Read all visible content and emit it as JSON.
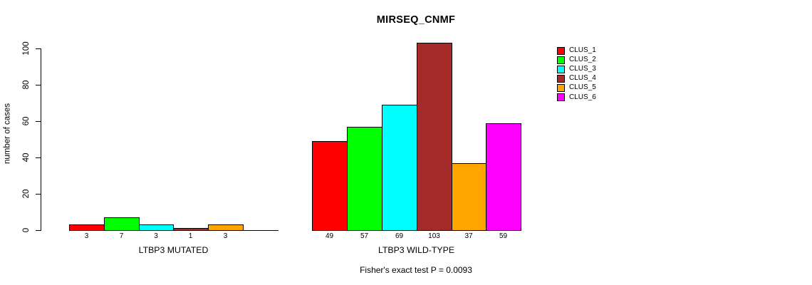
{
  "chart_data": {
    "type": "bar",
    "title": "MIRSEQ_CNMF",
    "ylabel": "number of cases",
    "ylim": [
      0,
      100
    ],
    "yticks": [
      0,
      20,
      40,
      60,
      80,
      100
    ],
    "grid": false,
    "legend_position": "right",
    "clusters": [
      {
        "name": "CLUS_1",
        "color": "#FF0000"
      },
      {
        "name": "CLUS_2",
        "color": "#00FF00"
      },
      {
        "name": "CLUS_3",
        "color": "#00FFFF"
      },
      {
        "name": "CLUS_4",
        "color": "#A52A2A"
      },
      {
        "name": "CLUS_5",
        "color": "#FFA500"
      },
      {
        "name": "CLUS_6",
        "color": "#FF00FF"
      }
    ],
    "groups": [
      {
        "label": "LTBP3 MUTATED",
        "values": [
          3,
          7,
          3,
          1,
          3,
          null
        ]
      },
      {
        "label": "LTBP3 WILD-TYPE",
        "values": [
          49,
          57,
          69,
          103,
          37,
          59
        ]
      }
    ],
    "footnote": "Fisher's exact test P = 0.0093"
  }
}
